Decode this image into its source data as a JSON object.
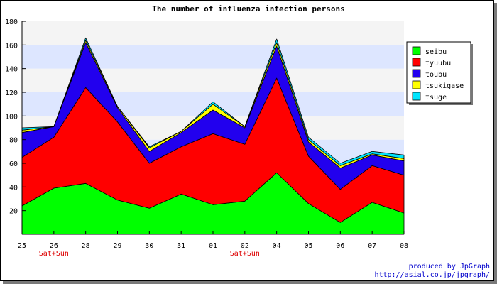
{
  "chart_data": {
    "type": "area",
    "stacked": true,
    "title": "The number of influenza infection persons",
    "categories": [
      "25",
      "26",
      "28",
      "29",
      "30",
      "31",
      "01",
      "02",
      "04",
      "05",
      "06",
      "07",
      "08"
    ],
    "weekend_markers": [
      {
        "category": "26",
        "label": "Sat+Sun"
      },
      {
        "category": "02",
        "label": "Sat+Sun"
      }
    ],
    "ylim": [
      0,
      180
    ],
    "yticks": [
      20,
      40,
      60,
      80,
      100,
      120,
      140,
      160,
      180
    ],
    "grid_bands": true,
    "series": [
      {
        "name": "seibu",
        "color": "#00ff00",
        "values": [
          24,
          39,
          43,
          29,
          22,
          34,
          25,
          28,
          52,
          26,
          10,
          27,
          18
        ]
      },
      {
        "name": "tyuubu",
        "color": "#ff0000",
        "values": [
          41,
          43,
          81,
          66,
          38,
          40,
          60,
          48,
          80,
          40,
          28,
          31,
          32
        ]
      },
      {
        "name": "toubu",
        "color": "#2200ee",
        "values": [
          21,
          9,
          38,
          12,
          10,
          12,
          20,
          14,
          27,
          12,
          18,
          9,
          12
        ]
      },
      {
        "name": "tsukigase",
        "color": "#ffff00",
        "values": [
          2,
          0,
          2,
          1,
          3,
          1,
          5,
          1,
          3,
          2,
          2,
          1,
          2
        ]
      },
      {
        "name": "tsuge",
        "color": "#00e5ff",
        "values": [
          2,
          0,
          2,
          0,
          1,
          0,
          2,
          0,
          3,
          2,
          2,
          2,
          3
        ]
      }
    ],
    "legend_position": "right"
  },
  "credits": {
    "line1": "produced by JpGraph",
    "line2": "http://asial.co.jp/jpgraph/"
  }
}
